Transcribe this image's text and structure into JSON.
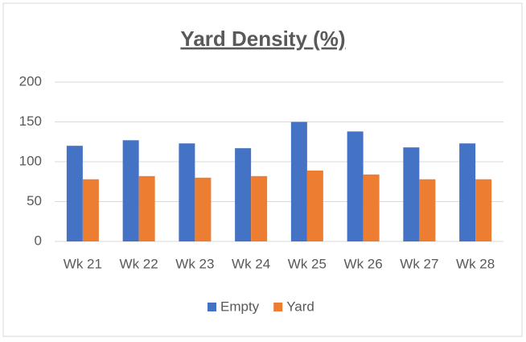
{
  "chart_data": {
    "type": "bar",
    "title": "Yard Density (%)",
    "categories": [
      "Wk 21",
      "Wk 22",
      "Wk 23",
      "Wk 24",
      "Wk 25",
      "Wk 26",
      "Wk 27",
      "Wk 28"
    ],
    "series": [
      {
        "name": "Empty",
        "color": "#4472c4",
        "values": [
          120,
          127,
          123,
          117,
          150,
          138,
          118,
          123
        ]
      },
      {
        "name": "Yard",
        "color": "#ed7d31",
        "values": [
          78,
          82,
          80,
          82,
          89,
          84,
          78,
          78
        ]
      }
    ],
    "ylim": [
      0,
      200
    ],
    "yticks": [
      0,
      50,
      100,
      150,
      200
    ],
    "grid": true,
    "legend": "bottom"
  }
}
